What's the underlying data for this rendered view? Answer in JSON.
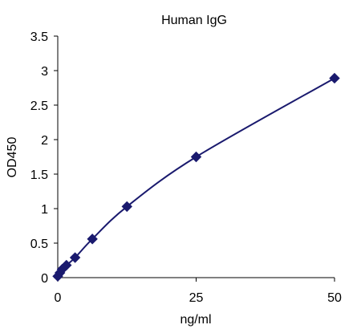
{
  "chart_data": {
    "type": "line",
    "title": "Human IgG",
    "xlabel": "ng/ml",
    "ylabel": "OD450",
    "xlim": [
      0,
      50
    ],
    "ylim": [
      0,
      3.5
    ],
    "x_ticks": [
      0,
      25,
      50
    ],
    "y_ticks": [
      0,
      0.5,
      1,
      1.5,
      2,
      2.5,
      3,
      3.5
    ],
    "x_tick_labels": [
      "0",
      "25",
      "50"
    ],
    "y_tick_labels": [
      "0",
      "0.5",
      "1",
      "1.5",
      "2",
      "2.5",
      "3",
      "3.5"
    ],
    "grid": false,
    "legend": "none",
    "series": [
      {
        "color": "#1a1a6e",
        "marker": "diamond",
        "points": [
          {
            "x": 0,
            "y": 0.02
          },
          {
            "x": 0.39,
            "y": 0.07
          },
          {
            "x": 0.78,
            "y": 0.12
          },
          {
            "x": 1.56,
            "y": 0.18
          },
          {
            "x": 3.13,
            "y": 0.29
          },
          {
            "x": 6.25,
            "y": 0.56
          },
          {
            "x": 12.5,
            "y": 1.03
          },
          {
            "x": 25,
            "y": 1.75
          },
          {
            "x": 50,
            "y": 2.89
          }
        ]
      }
    ]
  }
}
